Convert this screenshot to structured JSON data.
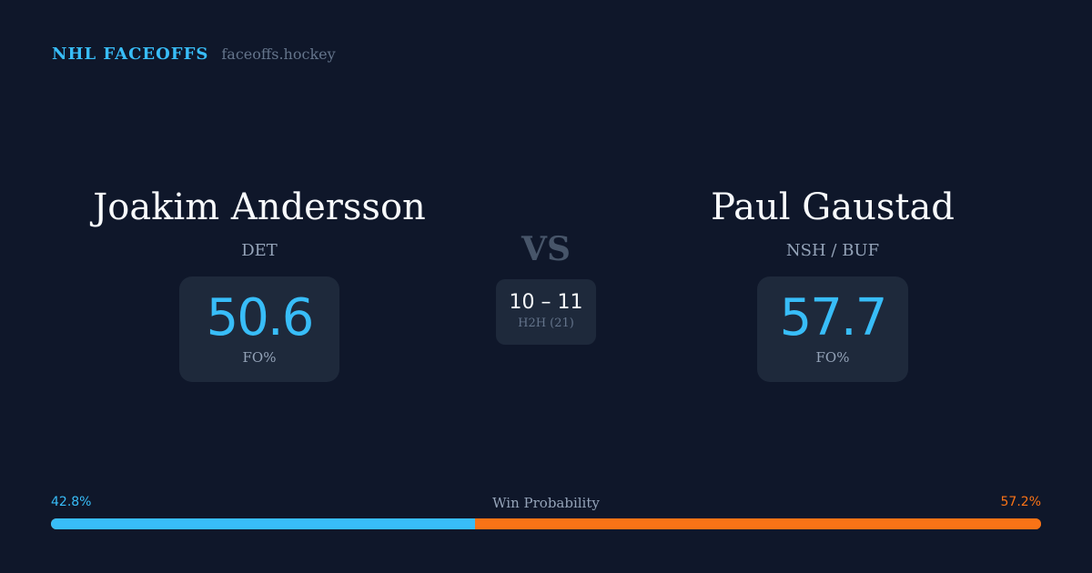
{
  "header": {
    "title": "NHL FACEOFFS",
    "site": "faceoffs.hockey"
  },
  "player1": {
    "name": "Joakim Andersson",
    "team": "DET",
    "fo_pct": "50.6",
    "fo_label": "FO%"
  },
  "player2": {
    "name": "Paul Gaustad",
    "team": "NSH / BUF",
    "fo_pct": "57.7",
    "fo_label": "FO%"
  },
  "versus": {
    "label": "VS",
    "h2h_score": "10 – 11",
    "h2h_label": "H2H (21)"
  },
  "win_probability": {
    "title": "Win Probability",
    "left_label": "42.8%",
    "right_label": "57.2%",
    "left_value": 42.8,
    "right_value": 57.2,
    "colors": {
      "left": "#38bdf8",
      "right": "#f97316"
    }
  }
}
